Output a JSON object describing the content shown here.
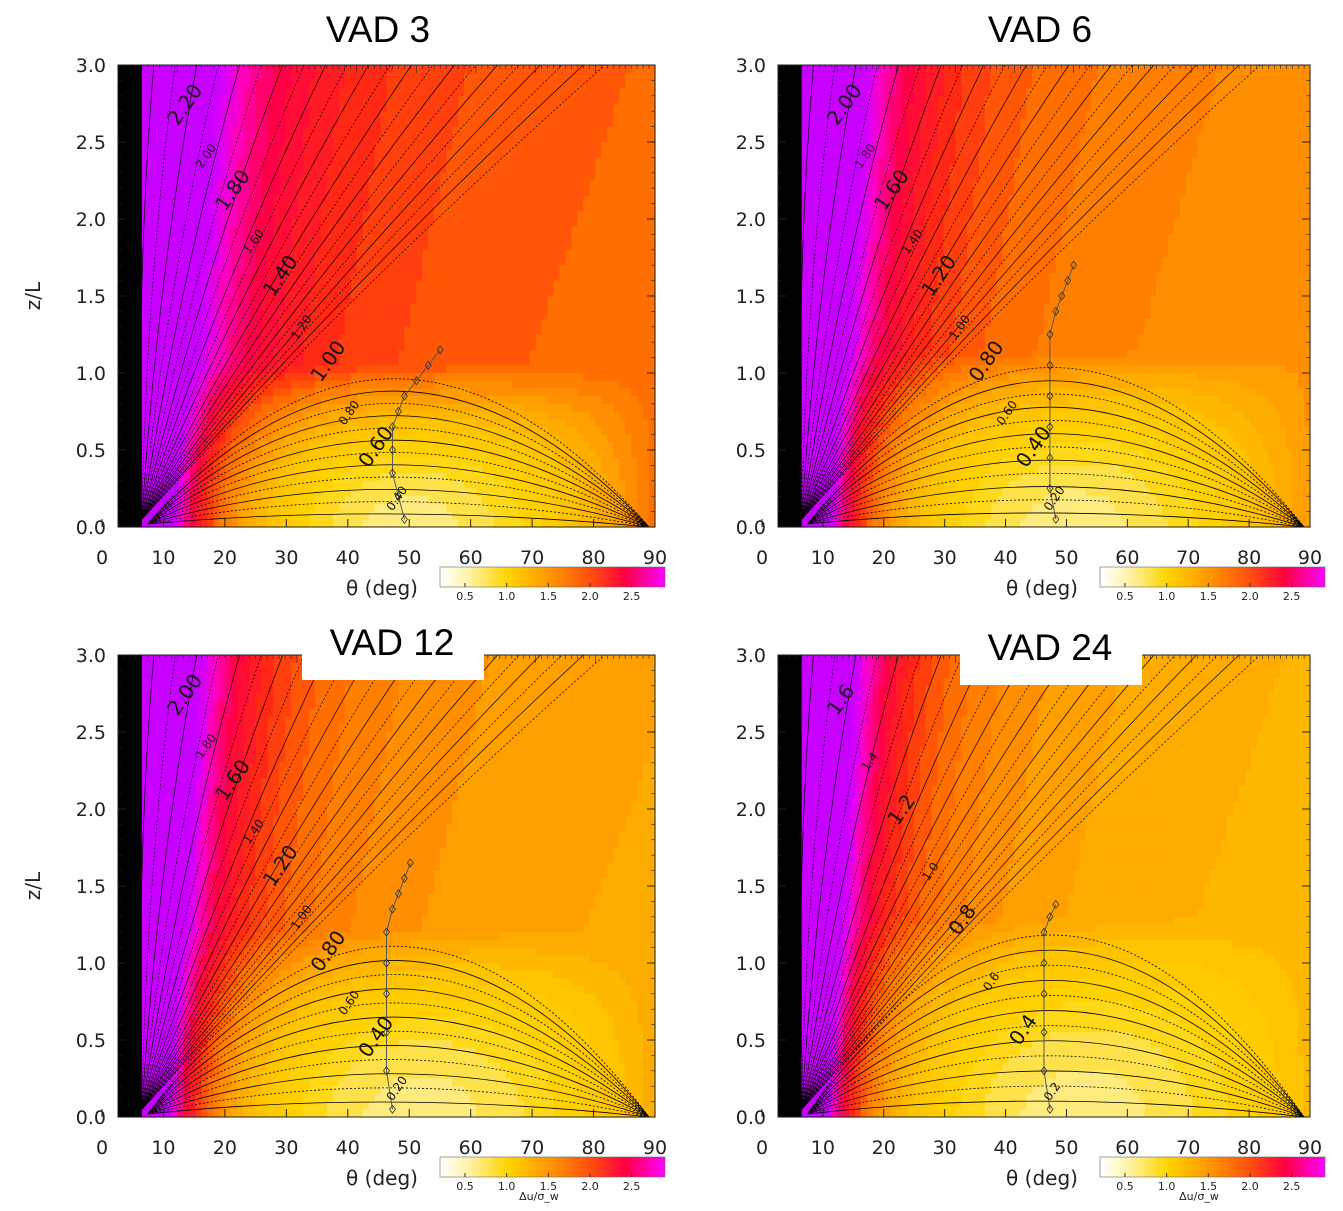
{
  "chart_data": [
    {
      "type": "heatmap",
      "title": "VAD 3",
      "xlabel": "θ (deg)",
      "ylabel": "z/L",
      "xlim": [
        0,
        90
      ],
      "ylim": [
        0,
        3.0
      ],
      "xticks": [
        "0",
        "10",
        "20",
        "30",
        "40",
        "50",
        "60",
        "70",
        "80",
        "90"
      ],
      "yticks": [
        "0.0",
        "0.5",
        "1.0",
        "1.5",
        "2.0",
        "2.5",
        "3.0"
      ],
      "colorbar": {
        "range": [
          0.2,
          2.9
        ],
        "ticks": [
          "0.5",
          "1.0",
          "1.5",
          "2.0",
          "2.5"
        ],
        "label": ""
      },
      "contour_labels": [
        "2.20",
        "2.00",
        "1.80",
        "1.60",
        "1.40",
        "1.20",
        "1.00",
        "0.80",
        "0.60",
        "0.40"
      ],
      "minimum_line": {
        "x": [
          48,
          47,
          46,
          46,
          46,
          47,
          48,
          50,
          52,
          54
        ],
        "y": [
          0.05,
          0.2,
          0.35,
          0.5,
          0.65,
          0.75,
          0.85,
          0.95,
          1.05,
          1.15
        ]
      }
    },
    {
      "type": "heatmap",
      "title": "VAD 6",
      "xlabel": "θ (deg)",
      "ylabel": "",
      "xlim": [
        0,
        90
      ],
      "ylim": [
        0,
        3.0
      ],
      "xticks": [
        "0",
        "10",
        "20",
        "30",
        "40",
        "50",
        "60",
        "70",
        "80",
        "90"
      ],
      "yticks": [
        "0.0",
        "0.5",
        "1.0",
        "1.5",
        "2.0",
        "2.5",
        "3.0"
      ],
      "colorbar": {
        "range": [
          0.2,
          2.9
        ],
        "ticks": [
          "0.5",
          "1.0",
          "1.5",
          "2.0",
          "2.5"
        ],
        "label": ""
      },
      "contour_labels": [
        "2.00",
        "1.80",
        "1.60",
        "1.40",
        "1.20",
        "1.00",
        "0.80",
        "0.60",
        "0.40",
        "0.20"
      ],
      "minimum_line": {
        "x": [
          47,
          46,
          46,
          46,
          46,
          46,
          46,
          47,
          48,
          49,
          50
        ],
        "y": [
          0.05,
          0.25,
          0.45,
          0.65,
          0.85,
          1.05,
          1.25,
          1.4,
          1.5,
          1.6,
          1.7
        ]
      }
    },
    {
      "type": "heatmap",
      "title": "VAD 12",
      "xlabel": "θ (deg)",
      "ylabel": "z/L",
      "xlim": [
        0,
        90
      ],
      "ylim": [
        0,
        3.0
      ],
      "xticks": [
        "0",
        "10",
        "20",
        "30",
        "40",
        "50",
        "60",
        "70",
        "80",
        "90"
      ],
      "yticks": [
        "0.0",
        "0.5",
        "1.0",
        "1.5",
        "2.0",
        "2.5",
        "3.0"
      ],
      "colorbar": {
        "range": [
          0.2,
          2.9
        ],
        "ticks": [
          "0.5",
          "1.0",
          "1.5",
          "2.0",
          "2.5"
        ],
        "label": "Δu/σ_w"
      },
      "contour_labels": [
        "2.00",
        "1.80",
        "1.60",
        "1.40",
        "1.20",
        "1.00",
        "0.80",
        "0.60",
        "0.40",
        "0.20"
      ],
      "minimum_line": {
        "x": [
          46,
          45,
          45,
          45,
          45,
          45,
          46,
          47,
          48,
          49
        ],
        "y": [
          0.05,
          0.3,
          0.55,
          0.8,
          1.0,
          1.2,
          1.35,
          1.45,
          1.55,
          1.65
        ]
      }
    },
    {
      "type": "heatmap",
      "title": "VAD 24",
      "xlabel": "θ (deg)",
      "ylabel": "",
      "xlim": [
        0,
        90
      ],
      "ylim": [
        0,
        3.0
      ],
      "xticks": [
        "0",
        "10",
        "20",
        "30",
        "40",
        "50",
        "60",
        "70",
        "80",
        "90"
      ],
      "yticks": [
        "0.0",
        "0.5",
        "1.0",
        "1.5",
        "2.0",
        "2.5",
        "3.0"
      ],
      "colorbar": {
        "range": [
          0.2,
          2.9
        ],
        "ticks": [
          "0.5",
          "1.0",
          "1.5",
          "2.0",
          "2.5"
        ],
        "label": "Δu/σ_w"
      },
      "contour_labels": [
        "1.6",
        "1.4",
        "1.2",
        "1.0",
        "0.8",
        "0.6",
        "0.4",
        "0.2"
      ],
      "minimum_line": {
        "x": [
          46,
          45,
          45,
          45,
          45,
          45,
          46,
          47
        ],
        "y": [
          0.05,
          0.3,
          0.55,
          0.8,
          1.0,
          1.2,
          1.3,
          1.38
        ]
      }
    }
  ]
}
